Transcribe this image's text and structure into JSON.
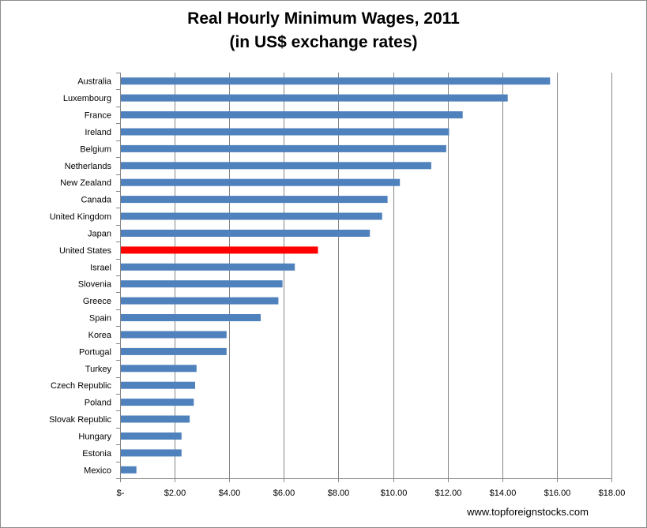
{
  "chart_data": {
    "type": "bar",
    "orientation": "horizontal",
    "title": "Real Hourly Minimum Wages, 2011",
    "subtitle": "(in US$ exchange rates)",
    "xlim": [
      0,
      18
    ],
    "x_ticks": [
      0,
      2,
      4,
      6,
      8,
      10,
      12,
      14,
      16,
      18
    ],
    "x_tick_labels": [
      "$-",
      "$2.00",
      "$4.00",
      "$6.00",
      "$8.00",
      "$10.00",
      "$12.00",
      "$14.00",
      "$16.00",
      "$18.00"
    ],
    "grid": "vertical",
    "categories": [
      "Australia",
      "Luxembourg",
      "France",
      "Ireland",
      "Belgium",
      "Netherlands",
      "New Zealand",
      "Canada",
      "United Kingdom",
      "Japan",
      "United States",
      "Israel",
      "Slovenia",
      "Greece",
      "Spain",
      "Korea",
      "Portugal",
      "Turkey",
      "Czech Republic",
      "Poland",
      "Slovak Republic",
      "Hungary",
      "Estonia",
      "Mexico"
    ],
    "values": [
      15.75,
      14.2,
      12.55,
      12.05,
      11.95,
      11.4,
      10.25,
      9.8,
      9.6,
      9.15,
      7.25,
      6.4,
      5.95,
      5.8,
      5.15,
      3.9,
      3.9,
      2.8,
      2.75,
      2.7,
      2.55,
      2.25,
      2.25,
      0.6
    ],
    "bar_color": "#4f81bd",
    "highlight": {
      "category": "United States",
      "color": "#ff0000"
    },
    "source": "www.topforeignstocks.com"
  }
}
